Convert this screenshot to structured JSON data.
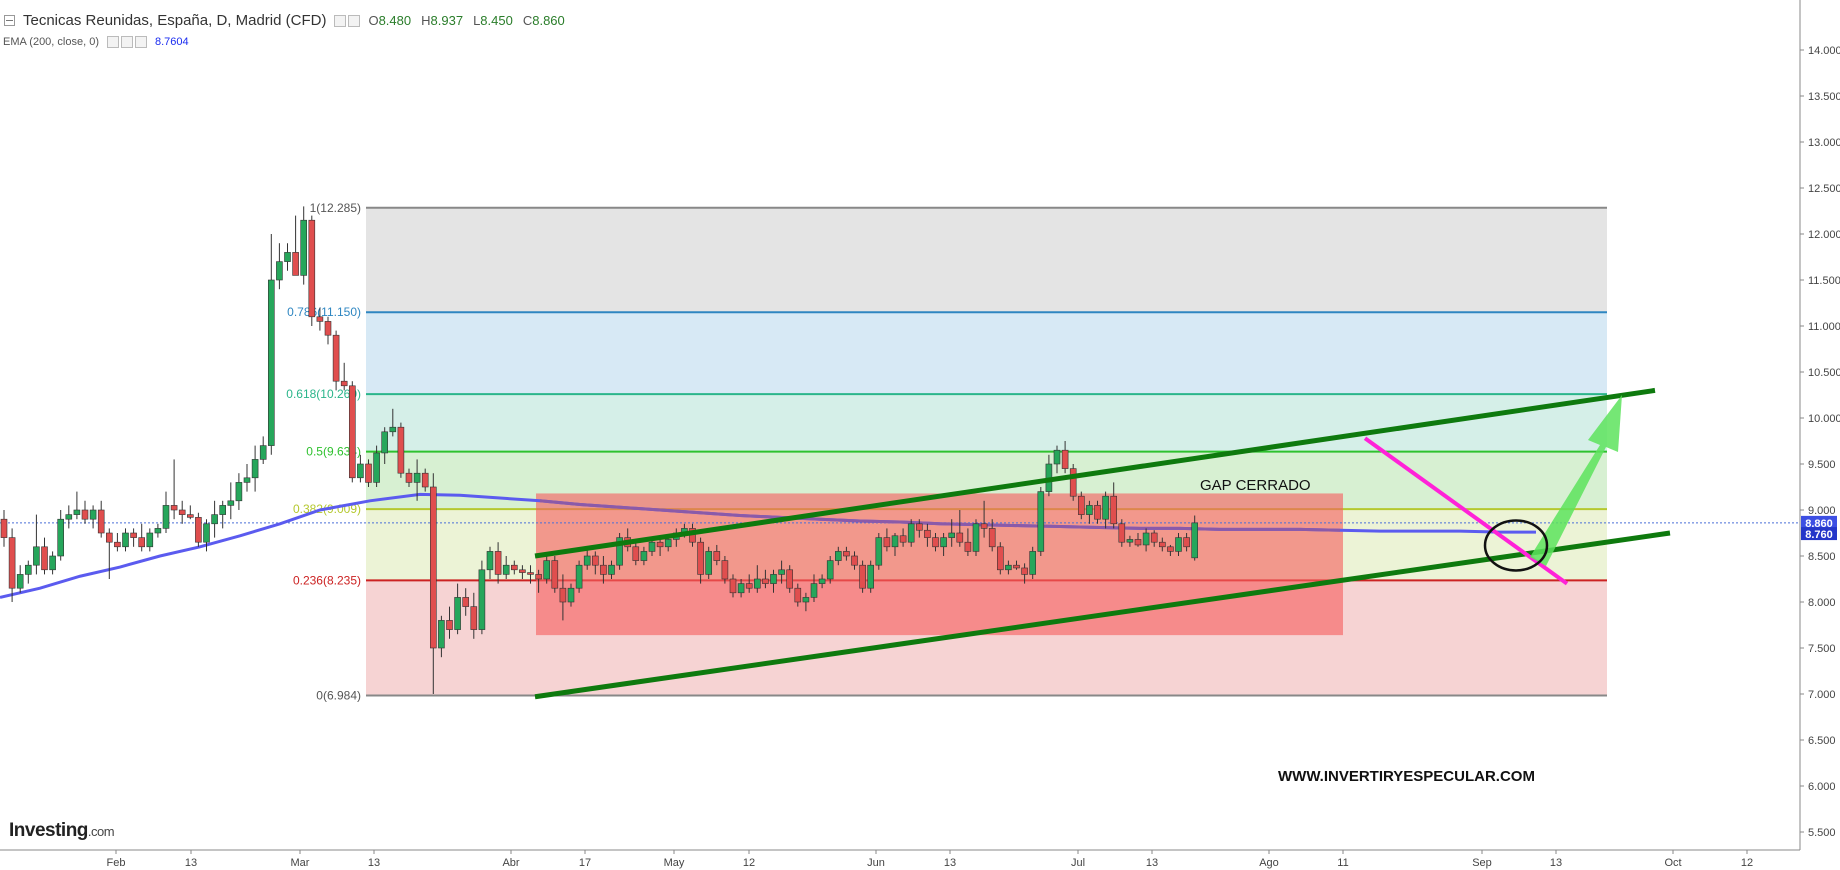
{
  "header": {
    "title": "Tecnicas Reunidas, España, D, Madrid (CFD)",
    "dropdown_icon": "chevron-down-icon",
    "ohlc": {
      "o_label": "O",
      "o": "8.480",
      "h_label": "H",
      "h": "8.937",
      "l_label": "L",
      "l": "8.450",
      "c_label": "C",
      "c": "8.860"
    },
    "ema_label": "EMA (200, close, 0)",
    "ema_value": "8.7604"
  },
  "logo": {
    "main": "Investing",
    "suffix": ".com"
  },
  "colors": {
    "up": "#26a65b",
    "down": "#e04e4e",
    "ema": "#5b5bef",
    "ema_overlay": "#8b5aa8",
    "channel": "#0e7a0e",
    "pink_line": "#ff22d8",
    "arrow": "#5de35d",
    "fib_0.786": "#2e86c1",
    "fib_0.618": "#2ab58a",
    "fib_0.5": "#2ec12e",
    "fib_0.382": "#b5c82e",
    "fib_0.236": "#cc2222"
  },
  "chart_data": {
    "type": "candlestick",
    "y_axis": {
      "min": 5.3,
      "max": 14.3,
      "ticks": [
        "14.000",
        "13.500",
        "13.000",
        "12.500",
        "12.000",
        "11.500",
        "11.000",
        "10.500",
        "10.000",
        "9.500",
        "9.000",
        "8.500",
        "8.000",
        "7.500",
        "7.000",
        "6.500",
        "6.000",
        "5.500"
      ]
    },
    "x_axis": {
      "tick_labels": [
        "Feb",
        "13",
        "Mar",
        "13",
        "Abr",
        "17",
        "May",
        "12",
        "Jun",
        "13",
        "Jul",
        "13",
        "Ago",
        "11",
        "Sep",
        "13",
        "Oct",
        "12"
      ]
    },
    "price_labels": {
      "last": "8.860",
      "ema": "8.760"
    },
    "fibonacci": {
      "levels": [
        {
          "ratio": 1,
          "value": 12.285,
          "label": "1(12.285)"
        },
        {
          "ratio": 0.786,
          "value": 11.15,
          "label": "0.786(11.150)"
        },
        {
          "ratio": 0.618,
          "value": 10.26,
          "label": "0.618(10.260)"
        },
        {
          "ratio": 0.5,
          "value": 9.634,
          "label": "0.5(9.634)"
        },
        {
          "ratio": 0.382,
          "value": 9.009,
          "label": "0.382(9.009)"
        },
        {
          "ratio": 0.236,
          "value": 8.235,
          "label": "0.236(8.235)"
        },
        {
          "ratio": 0,
          "value": 6.984,
          "label": "0(6.984)"
        }
      ]
    },
    "annotations": {
      "gap_text": "GAP CERRADO",
      "watermark": "WWW.INVERTIRYESPECULAR.COM",
      "gap_zone": {
        "high": 9.18,
        "low": 7.64
      },
      "channel_upper": {
        "start": 8.5,
        "end": 10.3
      },
      "channel_lower": {
        "start": 6.97,
        "end": 8.75
      },
      "downtrend_line": {
        "start": 9.78,
        "end": 8.2
      },
      "breakout_circle": {
        "price": 8.68
      }
    },
    "candles": [
      [
        8.9,
        9.0,
        8.6,
        8.7
      ],
      [
        8.7,
        8.8,
        8.0,
        8.15
      ],
      [
        8.15,
        8.4,
        8.1,
        8.3
      ],
      [
        8.3,
        8.45,
        8.2,
        8.4
      ],
      [
        8.4,
        8.95,
        8.3,
        8.6
      ],
      [
        8.6,
        8.7,
        8.3,
        8.35
      ],
      [
        8.35,
        8.55,
        8.3,
        8.5
      ],
      [
        8.5,
        9.0,
        8.45,
        8.9
      ],
      [
        8.9,
        9.05,
        8.8,
        8.95
      ],
      [
        8.95,
        9.2,
        8.9,
        9.0
      ],
      [
        9.0,
        9.1,
        8.85,
        8.9
      ],
      [
        8.9,
        9.05,
        8.8,
        9.0
      ],
      [
        9.0,
        9.1,
        8.7,
        8.75
      ],
      [
        8.75,
        8.8,
        8.25,
        8.65
      ],
      [
        8.65,
        8.75,
        8.55,
        8.6
      ],
      [
        8.6,
        8.8,
        8.55,
        8.75
      ],
      [
        8.75,
        8.8,
        8.6,
        8.7
      ],
      [
        8.7,
        8.85,
        8.55,
        8.6
      ],
      [
        8.6,
        8.8,
        8.55,
        8.75
      ],
      [
        8.75,
        8.85,
        8.7,
        8.8
      ],
      [
        8.8,
        9.2,
        8.75,
        9.05
      ],
      [
        9.05,
        9.55,
        8.9,
        9.0
      ],
      [
        9.0,
        9.1,
        8.85,
        8.95
      ],
      [
        8.95,
        9.05,
        8.9,
        8.92
      ],
      [
        8.92,
        8.97,
        8.6,
        8.65
      ],
      [
        8.65,
        8.9,
        8.55,
        8.85
      ],
      [
        8.85,
        9.1,
        8.7,
        8.95
      ],
      [
        8.95,
        9.1,
        8.8,
        9.05
      ],
      [
        9.05,
        9.3,
        8.9,
        9.1
      ],
      [
        9.1,
        9.4,
        9.0,
        9.3
      ],
      [
        9.3,
        9.5,
        9.2,
        9.35
      ],
      [
        9.35,
        9.7,
        9.2,
        9.55
      ],
      [
        9.55,
        9.8,
        9.5,
        9.7
      ],
      [
        9.7,
        12.0,
        9.6,
        11.5
      ],
      [
        11.5,
        11.9,
        11.4,
        11.7
      ],
      [
        11.7,
        11.9,
        11.6,
        11.8
      ],
      [
        11.8,
        12.2,
        11.6,
        11.55
      ],
      [
        11.55,
        12.3,
        11.45,
        12.15
      ],
      [
        12.15,
        12.2,
        11.0,
        11.1
      ],
      [
        11.1,
        11.2,
        10.95,
        11.05
      ],
      [
        11.05,
        11.1,
        10.8,
        10.9
      ],
      [
        10.9,
        10.95,
        10.3,
        10.4
      ],
      [
        10.4,
        10.6,
        10.3,
        10.35
      ],
      [
        10.35,
        10.4,
        9.3,
        9.35
      ],
      [
        9.35,
        9.6,
        9.3,
        9.5
      ],
      [
        9.5,
        9.55,
        9.25,
        9.3
      ],
      [
        9.3,
        9.7,
        9.25,
        9.62
      ],
      [
        9.62,
        9.9,
        9.5,
        9.85
      ],
      [
        9.85,
        10.1,
        9.8,
        9.9
      ],
      [
        9.9,
        9.95,
        9.35,
        9.4
      ],
      [
        9.4,
        9.45,
        9.25,
        9.3
      ],
      [
        9.3,
        9.55,
        9.1,
        9.4
      ],
      [
        9.4,
        9.45,
        9.2,
        9.25
      ],
      [
        9.25,
        9.4,
        7.0,
        7.5
      ],
      [
        7.5,
        7.85,
        7.4,
        7.8
      ],
      [
        7.8,
        7.95,
        7.6,
        7.7
      ],
      [
        7.7,
        8.2,
        7.65,
        8.05
      ],
      [
        8.05,
        8.15,
        7.85,
        7.95
      ],
      [
        7.95,
        8.1,
        7.6,
        7.7
      ],
      [
        7.7,
        8.45,
        7.65,
        8.35
      ],
      [
        8.35,
        8.6,
        8.25,
        8.55
      ],
      [
        8.55,
        8.65,
        8.2,
        8.3
      ],
      [
        8.3,
        8.5,
        8.25,
        8.4
      ],
      [
        8.4,
        8.45,
        8.3,
        8.35
      ],
      [
        8.35,
        8.4,
        8.25,
        8.32
      ],
      [
        8.32,
        8.4,
        8.2,
        8.3
      ],
      [
        8.3,
        8.35,
        8.1,
        8.25
      ],
      [
        8.25,
        8.5,
        8.2,
        8.45
      ],
      [
        8.45,
        8.5,
        8.1,
        8.15
      ],
      [
        8.15,
        8.3,
        7.8,
        8.0
      ],
      [
        8.0,
        8.2,
        7.95,
        8.15
      ],
      [
        8.15,
        8.45,
        8.1,
        8.4
      ],
      [
        8.4,
        8.6,
        8.35,
        8.5
      ],
      [
        8.5,
        8.55,
        8.3,
        8.4
      ],
      [
        8.4,
        8.5,
        8.2,
        8.3
      ],
      [
        8.3,
        8.45,
        8.25,
        8.4
      ],
      [
        8.4,
        8.75,
        8.35,
        8.7
      ],
      [
        8.7,
        8.8,
        8.55,
        8.6
      ],
      [
        8.6,
        8.65,
        8.4,
        8.45
      ],
      [
        8.45,
        8.6,
        8.4,
        8.55
      ],
      [
        8.55,
        8.7,
        8.5,
        8.65
      ],
      [
        8.65,
        8.7,
        8.5,
        8.6
      ],
      [
        8.6,
        8.7,
        8.55,
        8.68
      ],
      [
        8.68,
        8.8,
        8.6,
        8.75
      ],
      [
        8.75,
        8.85,
        8.7,
        8.8
      ],
      [
        8.8,
        8.85,
        8.6,
        8.65
      ],
      [
        8.65,
        8.7,
        8.2,
        8.3
      ],
      [
        8.3,
        8.6,
        8.25,
        8.55
      ],
      [
        8.55,
        8.62,
        8.4,
        8.45
      ],
      [
        8.45,
        8.5,
        8.2,
        8.25
      ],
      [
        8.25,
        8.3,
        8.05,
        8.1
      ],
      [
        8.1,
        8.25,
        8.05,
        8.2
      ],
      [
        8.2,
        8.3,
        8.1,
        8.15
      ],
      [
        8.15,
        8.4,
        8.1,
        8.25
      ],
      [
        8.25,
        8.35,
        8.15,
        8.2
      ],
      [
        8.2,
        8.35,
        8.1,
        8.3
      ],
      [
        8.3,
        8.45,
        8.2,
        8.35
      ],
      [
        8.35,
        8.4,
        8.1,
        8.15
      ],
      [
        8.15,
        8.2,
        7.95,
        8.0
      ],
      [
        8.0,
        8.1,
        7.9,
        8.05
      ],
      [
        8.05,
        8.3,
        8.0,
        8.2
      ],
      [
        8.2,
        8.3,
        8.15,
        8.25
      ],
      [
        8.25,
        8.5,
        8.2,
        8.45
      ],
      [
        8.45,
        8.6,
        8.4,
        8.55
      ],
      [
        8.55,
        8.6,
        8.45,
        8.5
      ],
      [
        8.5,
        8.55,
        8.35,
        8.4
      ],
      [
        8.4,
        8.45,
        8.1,
        8.15
      ],
      [
        8.15,
        8.45,
        8.1,
        8.4
      ],
      [
        8.4,
        8.75,
        8.35,
        8.7
      ],
      [
        8.7,
        8.8,
        8.55,
        8.6
      ],
      [
        8.6,
        8.75,
        8.5,
        8.72
      ],
      [
        8.72,
        8.8,
        8.6,
        8.65
      ],
      [
        8.65,
        8.9,
        8.6,
        8.85
      ],
      [
        8.85,
        8.9,
        8.7,
        8.78
      ],
      [
        8.78,
        8.85,
        8.6,
        8.7
      ],
      [
        8.7,
        8.75,
        8.55,
        8.6
      ],
      [
        8.6,
        8.75,
        8.5,
        8.7
      ],
      [
        8.7,
        8.9,
        8.6,
        8.75
      ],
      [
        8.75,
        9.0,
        8.6,
        8.65
      ],
      [
        8.65,
        8.8,
        8.5,
        8.55
      ],
      [
        8.55,
        8.9,
        8.5,
        8.85
      ],
      [
        8.85,
        9.1,
        8.7,
        8.8
      ],
      [
        8.8,
        8.9,
        8.55,
        8.6
      ],
      [
        8.6,
        8.65,
        8.3,
        8.35
      ],
      [
        8.35,
        8.45,
        8.3,
        8.4
      ],
      [
        8.4,
        8.45,
        8.35,
        8.37
      ],
      [
        8.37,
        8.42,
        8.2,
        8.3
      ],
      [
        8.3,
        8.6,
        8.25,
        8.55
      ],
      [
        8.55,
        9.25,
        8.5,
        9.2
      ],
      [
        9.2,
        9.6,
        9.15,
        9.5
      ],
      [
        9.5,
        9.7,
        9.4,
        9.65
      ],
      [
        9.65,
        9.75,
        9.4,
        9.45
      ],
      [
        9.45,
        9.5,
        9.1,
        9.15
      ],
      [
        9.15,
        9.2,
        8.9,
        8.95
      ],
      [
        8.95,
        9.1,
        8.85,
        9.05
      ],
      [
        9.05,
        9.1,
        8.85,
        8.9
      ],
      [
        8.9,
        9.2,
        8.8,
        9.15
      ],
      [
        9.15,
        9.3,
        8.8,
        8.85
      ],
      [
        8.85,
        8.9,
        8.6,
        8.65
      ],
      [
        8.65,
        8.72,
        8.6,
        8.68
      ],
      [
        8.68,
        8.75,
        8.6,
        8.62
      ],
      [
        8.62,
        8.8,
        8.55,
        8.75
      ],
      [
        8.75,
        8.78,
        8.6,
        8.65
      ],
      [
        8.65,
        8.7,
        8.55,
        8.6
      ],
      [
        8.6,
        8.62,
        8.5,
        8.55
      ],
      [
        8.55,
        8.75,
        8.5,
        8.7
      ],
      [
        8.7,
        8.75,
        8.55,
        8.6
      ],
      [
        8.48,
        8.94,
        8.45,
        8.86
      ]
    ],
    "ema200": [
      [
        0,
        8.05
      ],
      [
        40,
        8.15
      ],
      [
        80,
        8.28
      ],
      [
        120,
        8.38
      ],
      [
        160,
        8.5
      ],
      [
        200,
        8.6
      ],
      [
        240,
        8.72
      ],
      [
        280,
        8.85
      ],
      [
        320,
        9.0
      ],
      [
        370,
        9.1
      ],
      [
        420,
        9.17
      ],
      [
        460,
        9.16
      ],
      [
        500,
        9.13
      ],
      [
        540,
        9.1
      ],
      [
        580,
        9.06
      ],
      [
        620,
        9.03
      ],
      [
        660,
        9.0
      ],
      [
        700,
        8.97
      ],
      [
        740,
        8.94
      ],
      [
        780,
        8.92
      ],
      [
        820,
        8.9
      ],
      [
        860,
        8.88
      ],
      [
        900,
        8.87
      ],
      [
        940,
        8.85
      ],
      [
        980,
        8.84
      ],
      [
        1020,
        8.83
      ],
      [
        1060,
        8.82
      ],
      [
        1100,
        8.81
      ],
      [
        1140,
        8.8
      ],
      [
        1180,
        8.8
      ],
      [
        1220,
        8.79
      ],
      [
        1260,
        8.79
      ],
      [
        1300,
        8.79
      ],
      [
        1340,
        8.78
      ],
      [
        1380,
        8.77
      ],
      [
        1420,
        8.77
      ],
      [
        1460,
        8.77
      ],
      [
        1500,
        8.76
      ],
      [
        1536,
        8.76
      ]
    ]
  }
}
